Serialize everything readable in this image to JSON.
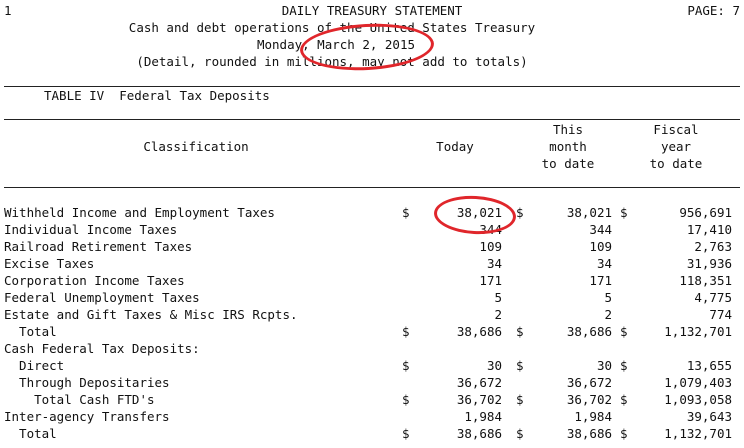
{
  "header": {
    "page_number_left": "1",
    "title": "DAILY TREASURY STATEMENT",
    "page_label": "PAGE: 7",
    "subtitle": "Cash and debt operations of the United States Treasury",
    "date_line": "Monday, March 2, 2015",
    "note": "(Detail, rounded in millions, may not add to totals)"
  },
  "table": {
    "title": "TABLE IV  Federal Tax Deposits",
    "columns": {
      "classification": "Classification",
      "today": "Today",
      "month_line1": "This",
      "month_line2": "month",
      "month_line3": "to date",
      "fiscal_line1": "Fiscal",
      "fiscal_line2": "year",
      "fiscal_line3": "to date"
    },
    "rows": [
      {
        "label": "Withheld Income and Employment Taxes",
        "d1": "$",
        "today": "38,021",
        "d2": "$",
        "month": "38,021",
        "d3": "$",
        "fiscal": "956,691"
      },
      {
        "label": "Individual Income Taxes",
        "d1": "",
        "today": "344",
        "d2": "",
        "month": "344",
        "d3": "",
        "fiscal": "17,410"
      },
      {
        "label": "Railroad Retirement Taxes",
        "d1": "",
        "today": "109",
        "d2": "",
        "month": "109",
        "d3": "",
        "fiscal": "2,763"
      },
      {
        "label": "Excise Taxes",
        "d1": "",
        "today": "34",
        "d2": "",
        "month": "34",
        "d3": "",
        "fiscal": "31,936"
      },
      {
        "label": "Corporation Income Taxes",
        "d1": "",
        "today": "171",
        "d2": "",
        "month": "171",
        "d3": "",
        "fiscal": "118,351"
      },
      {
        "label": "Federal Unemployment Taxes",
        "d1": "",
        "today": "5",
        "d2": "",
        "month": "5",
        "d3": "",
        "fiscal": "4,775"
      },
      {
        "label": "Estate and Gift Taxes & Misc IRS Rcpts.",
        "d1": "",
        "today": "2",
        "d2": "",
        "month": "2",
        "d3": "",
        "fiscal": "774"
      },
      {
        "label": "  Total",
        "d1": "$",
        "today": "38,686",
        "d2": "$",
        "month": "38,686",
        "d3": "$",
        "fiscal": "1,132,701"
      },
      {
        "label": "Cash Federal Tax Deposits:",
        "d1": "",
        "today": "",
        "d2": "",
        "month": "",
        "d3": "",
        "fiscal": ""
      },
      {
        "label": "  Direct",
        "d1": "$",
        "today": "30",
        "d2": "$",
        "month": "30",
        "d3": "$",
        "fiscal": "13,655"
      },
      {
        "label": "  Through Depositaries",
        "d1": "",
        "today": "36,672",
        "d2": "",
        "month": "36,672",
        "d3": "",
        "fiscal": "1,079,403"
      },
      {
        "label": "    Total Cash FTD's",
        "d1": "$",
        "today": "36,702",
        "d2": "$",
        "month": "36,702",
        "d3": "$",
        "fiscal": "1,093,058"
      },
      {
        "label": "Inter-agency Transfers",
        "d1": "",
        "today": "1,984",
        "d2": "",
        "month": "1,984",
        "d3": "",
        "fiscal": "39,643"
      },
      {
        "label": "  Total",
        "d1": "$",
        "today": "38,686",
        "d2": "$",
        "month": "38,686",
        "d3": "$",
        "fiscal": "1,132,701"
      }
    ]
  },
  "annotation_color": "#e0262b"
}
